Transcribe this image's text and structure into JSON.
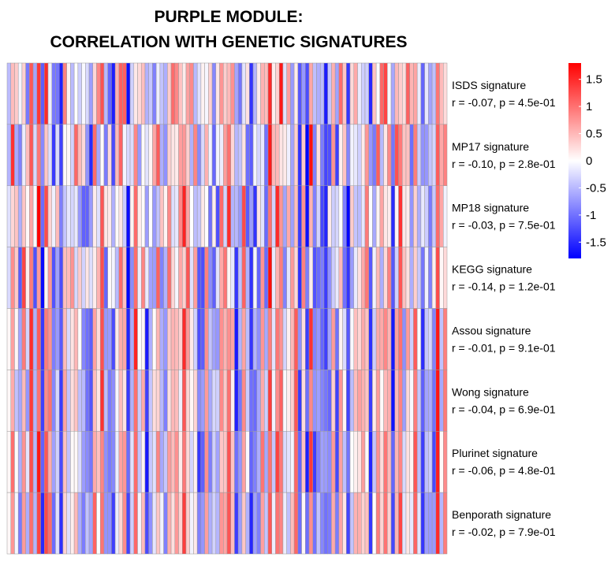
{
  "chart_data": {
    "type": "heatmap",
    "title": [
      "PURPLE MODULE:",
      "CORRELATION WITH GENETIC SIGNATURES"
    ],
    "rows": [
      {
        "name": "ISDS signature",
        "stat": "r = -0.07, p = 4.5e-01"
      },
      {
        "name": "MP17 signature",
        "stat": "r = -0.10, p = 2.8e-01"
      },
      {
        "name": "MP18 signature",
        "stat": "r = -0.03, p = 7.5e-01"
      },
      {
        "name": "KEGG signature",
        "stat": "r = -0.14, p = 1.2e-01"
      },
      {
        "name": "Assou signature",
        "stat": "r = -0.01, p = 9.1e-01"
      },
      {
        "name": "Wong signature",
        "stat": "r = -0.04, p = 6.9e-01"
      },
      {
        "name": "Plurinet signature",
        "stat": "r = -0.06, p = 4.8e-01"
      },
      {
        "name": "Benporath signature",
        "stat": "r = -0.02, p = 7.9e-01"
      }
    ],
    "n_columns": 118,
    "color_scale": {
      "low": "#0000ff",
      "mid": "#ffffff",
      "high": "#ff0000",
      "range": [
        -1.8,
        1.8
      ]
    },
    "legend_ticks": [
      "1.5",
      "1",
      "0.5",
      "0",
      "-0.5",
      "-1",
      "-1.5"
    ],
    "legend_values": [
      1.5,
      1,
      0.5,
      0,
      -0.5,
      -1,
      -1.5
    ],
    "cell_values": "approximate; values in [-1.8, 1.8] estimated from the color of each cell"
  }
}
